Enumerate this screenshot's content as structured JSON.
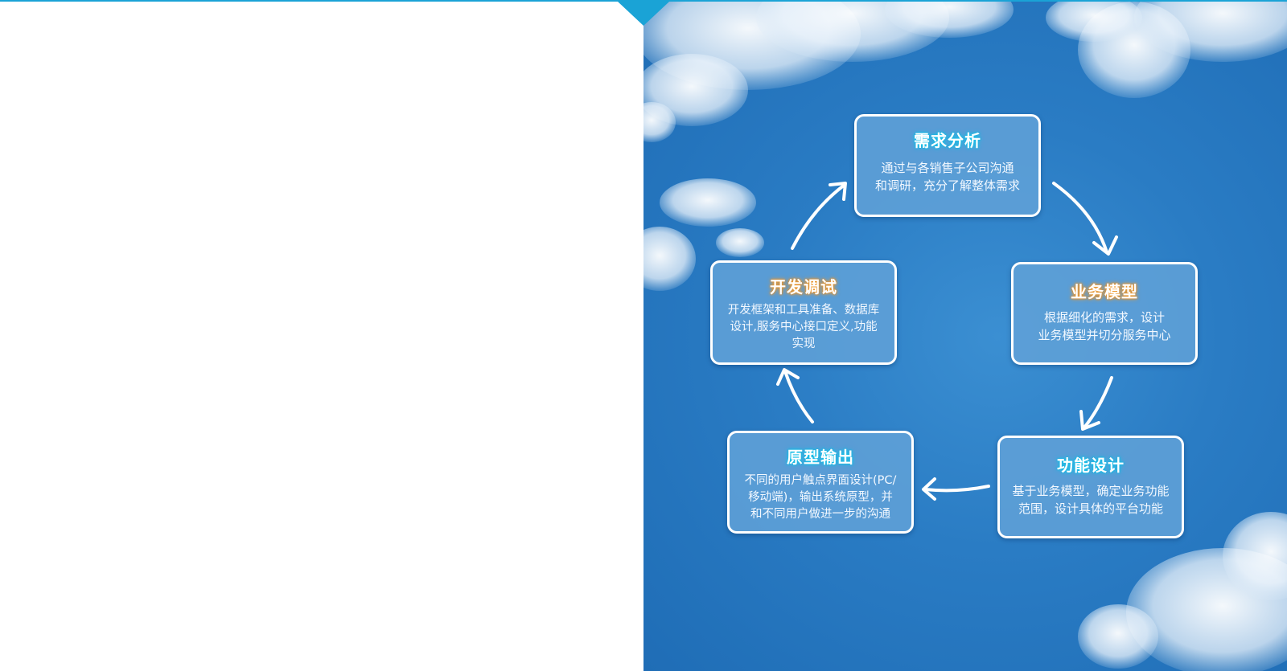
{
  "colors": {
    "accent": "#1aa3d6",
    "sky": "#2a7cc4",
    "card_fill": "#60a0d7",
    "title_glow_cyan": "#14c3ea",
    "title_glow_orange": "#f2992a"
  },
  "process": {
    "steps": [
      {
        "title": "需求分析",
        "lines": [
          "通过与各销售子公司沟通",
          "和调研，充分了解整体需求"
        ]
      },
      {
        "title": "业务模型",
        "lines": [
          "根据细化的需求，设计",
          "业务模型并切分服务中心"
        ]
      },
      {
        "title": "功能设计",
        "lines": [
          "基于业务模型，确定业务功能",
          "范围，设计具体的平台功能"
        ]
      },
      {
        "title": "原型输出",
        "lines": [
          "不同的用户触点界面设计(PC/",
          "移动端)，输出系统原型，并",
          "和不同用户做进一步的沟通"
        ]
      },
      {
        "title": "开发调试",
        "lines": [
          "开发框架和工具准备、数据库",
          "设计,服务中心接口定义,功能",
          "实现"
        ]
      }
    ]
  }
}
